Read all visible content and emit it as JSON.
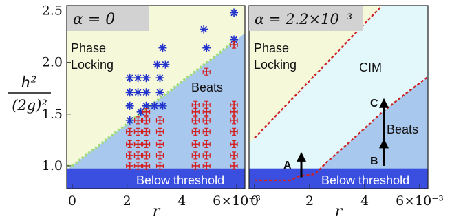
{
  "chart_data": [
    {
      "type": "scatter",
      "panel_label": "α = 0",
      "xlabel": "r",
      "ylabel_num": "h²",
      "ylabel_den": "(2g)²",
      "xlim": [
        -0.0002,
        0.0063
      ],
      "ylim": [
        0.78,
        2.55
      ],
      "x_ticks": [
        "0",
        "2",
        "4",
        "6×10⁻³"
      ],
      "x_tick_values": [
        0,
        0.002,
        0.004,
        0.006
      ],
      "y_ticks": [
        "1.0",
        "1.5",
        "2.0",
        "2.5"
      ],
      "y_tick_values": [
        1.0,
        1.5,
        2.0,
        2.5
      ],
      "regions": {
        "phase_locking": "Phase\nLocking",
        "beats": "Beats",
        "below": "Below threshold"
      },
      "threshold": 0.975,
      "phase_boundary": [
        [
          0,
          1.0
        ],
        [
          0.006,
          2.22
        ]
      ],
      "colors": {
        "phase_locking": "#f6f8da",
        "beats": "#a9c8ee",
        "below": "#3a4fe0",
        "locking_marker": "#2233cc",
        "beats_marker": "#d42020",
        "boundary": "#9fdd7a"
      },
      "series": [
        {
          "name": "",
          "color": "#2233cc",
          "points": [
            [
              0.0021,
              1.85
            ],
            [
              0.0024,
              1.85
            ],
            [
              0.0027,
              1.85
            ],
            [
              0.0032,
              1.85
            ],
            [
              0.0021,
              1.71
            ],
            [
              0.0024,
              1.71
            ],
            [
              0.0027,
              1.71
            ],
            [
              0.0032,
              1.71
            ],
            [
              0.0021,
              1.58
            ],
            [
              0.0027,
              1.58
            ],
            [
              0.003,
              1.58
            ],
            [
              0.0033,
              1.58
            ],
            [
              0.0025,
              1.52
            ],
            [
              0.0021,
              1.44
            ],
            [
              0.0031,
              1.98
            ],
            [
              0.0034,
              1.98
            ],
            [
              0.0033,
              2.14
            ],
            [
              0.0049,
              2.14
            ],
            [
              0.0048,
              2.32
            ],
            [
              0.0059,
              2.48
            ],
            [
              0.0059,
              2.22
            ]
          ]
        },
        {
          "name": "",
          "color": "#d42020",
          "points": [
            [
              0.0021,
              1.0
            ],
            [
              0.0024,
              1.0
            ],
            [
              0.0027,
              1.0
            ],
            [
              0.0032,
              1.0
            ],
            [
              0.0045,
              1.0
            ],
            [
              0.0049,
              1.0
            ],
            [
              0.0059,
              1.0
            ],
            [
              0.0021,
              1.1
            ],
            [
              0.0024,
              1.1
            ],
            [
              0.0027,
              1.1
            ],
            [
              0.0032,
              1.1
            ],
            [
              0.0045,
              1.1
            ],
            [
              0.0049,
              1.1
            ],
            [
              0.0059,
              1.1
            ],
            [
              0.0021,
              1.21
            ],
            [
              0.0024,
              1.21
            ],
            [
              0.0027,
              1.21
            ],
            [
              0.0032,
              1.21
            ],
            [
              0.0045,
              1.21
            ],
            [
              0.0049,
              1.21
            ],
            [
              0.0059,
              1.21
            ],
            [
              0.0021,
              1.33
            ],
            [
              0.0024,
              1.33
            ],
            [
              0.0027,
              1.33
            ],
            [
              0.0032,
              1.33
            ],
            [
              0.0045,
              1.33
            ],
            [
              0.0049,
              1.33
            ],
            [
              0.0059,
              1.33
            ],
            [
              0.0024,
              1.44
            ],
            [
              0.0027,
              1.44
            ],
            [
              0.0032,
              1.44
            ],
            [
              0.0045,
              1.44
            ],
            [
              0.0049,
              1.44
            ],
            [
              0.0059,
              1.44
            ],
            [
              0.0027,
              1.52
            ],
            [
              0.0045,
              1.52
            ],
            [
              0.0049,
              1.52
            ],
            [
              0.0059,
              1.52
            ],
            [
              0.0045,
              1.59
            ],
            [
              0.0049,
              1.59
            ],
            [
              0.0059,
              1.59
            ],
            [
              0.0049,
              1.91
            ],
            [
              0.0059,
              2.17
            ]
          ]
        }
      ]
    },
    {
      "type": "area",
      "panel_label": "α = 2.2×10⁻³",
      "xlabel": "r",
      "xlim": [
        -0.0002,
        0.0063
      ],
      "ylim": [
        0.78,
        2.55
      ],
      "x_ticks": [
        "0",
        "2",
        "4",
        "6×10⁻³"
      ],
      "x_tick_values": [
        0,
        0.002,
        0.004,
        0.006
      ],
      "regions": {
        "phase_locking": "Phase\nLocking",
        "cim": "CIM",
        "beats": "Beats",
        "below": "Below threshold"
      },
      "threshold": 0.975,
      "upper_boundary": [
        [
          0,
          1.27
        ],
        [
          0.0046,
          2.54
        ]
      ],
      "lower_boundary": [
        [
          0,
          0.86
        ],
        [
          0.0013,
          0.86
        ],
        [
          0.0016,
          0.9
        ],
        [
          0.0022,
          0.92
        ],
        [
          0.0026,
          1.03
        ],
        [
          0.0035,
          1.24
        ],
        [
          0.0046,
          1.51
        ],
        [
          0.0055,
          1.7
        ],
        [
          0.0063,
          1.86
        ]
      ],
      "colors": {
        "phase_locking": "#f6f8da",
        "cim": "#e3f8fb",
        "beats": "#a9c8ee",
        "below": "#3a4fe0",
        "boundary": "#cc2222"
      },
      "annotations": [
        {
          "text": "A",
          "x": 0.0017,
          "y_from": 0.89,
          "y_to": 1.12
        },
        {
          "text": "B",
          "x": 0.0047,
          "y_from": 1.0,
          "y_to": 1.25
        },
        {
          "text": "C",
          "x": 0.0047,
          "y_from": 1.22,
          "y_to": 1.64
        }
      ]
    }
  ]
}
